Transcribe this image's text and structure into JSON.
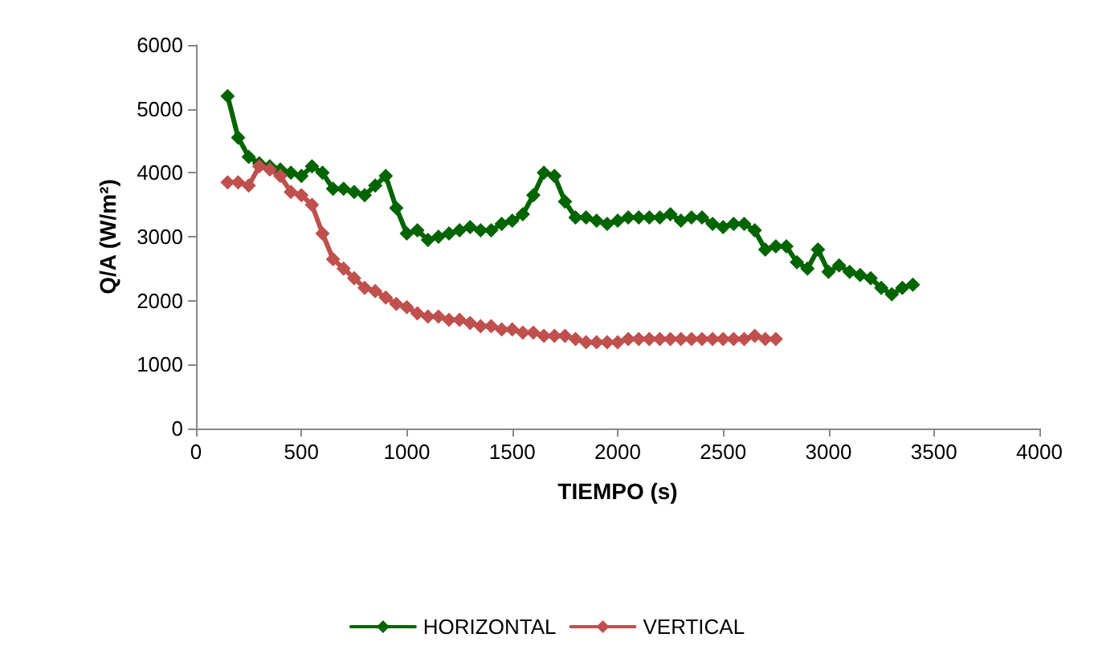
{
  "chart_data": {
    "type": "line",
    "xlabel": "TIEMPO (s)",
    "ylabel": "Q/A (W/m²)",
    "xlim": [
      0,
      4000
    ],
    "xticks": [
      0,
      500,
      1000,
      1500,
      2000,
      2500,
      3000,
      3500,
      4000
    ],
    "ylim": [
      0,
      6000
    ],
    "yticks": [
      0,
      1000,
      2000,
      3000,
      4000,
      5000,
      6000
    ],
    "grid": false,
    "legend": "bottom",
    "marker": "diamond",
    "line_style": "solid",
    "series": [
      {
        "name": "HORIZONTAL",
        "color": "#006400",
        "x": [
          150,
          200,
          250,
          300,
          350,
          400,
          450,
          500,
          550,
          600,
          650,
          700,
          750,
          800,
          850,
          900,
          950,
          1000,
          1050,
          1100,
          1150,
          1200,
          1250,
          1300,
          1350,
          1400,
          1450,
          1500,
          1550,
          1600,
          1650,
          1700,
          1750,
          1800,
          1850,
          1900,
          1950,
          2000,
          2050,
          2100,
          2150,
          2200,
          2250,
          2300,
          2350,
          2400,
          2450,
          2500,
          2550,
          2600,
          2650,
          2700,
          2750,
          2800,
          2850,
          2900,
          2950,
          3000,
          3050,
          3100,
          3150,
          3200,
          3250,
          3300,
          3350,
          3400
        ],
        "values": [
          5200,
          4550,
          4250,
          4150,
          4100,
          4050,
          4000,
          3950,
          4100,
          4000,
          3750,
          3750,
          3700,
          3650,
          3800,
          3950,
          3450,
          3050,
          3100,
          2950,
          3000,
          3050,
          3100,
          3150,
          3100,
          3100,
          3200,
          3250,
          3350,
          3650,
          4000,
          3950,
          3550,
          3300,
          3300,
          3250,
          3200,
          3250,
          3300,
          3300,
          3300,
          3300,
          3350,
          3250,
          3300,
          3300,
          3200,
          3150,
          3200,
          3200,
          3100,
          2800,
          2850,
          2850,
          2600,
          2500,
          2800,
          2450,
          2550,
          2450,
          2400,
          2350,
          2200,
          2100,
          2200,
          2250
        ]
      },
      {
        "name": "VERTICAL",
        "color": "#c0504d",
        "x": [
          150,
          200,
          250,
          300,
          350,
          400,
          450,
          500,
          550,
          600,
          650,
          700,
          750,
          800,
          850,
          900,
          950,
          1000,
          1050,
          1100,
          1150,
          1200,
          1250,
          1300,
          1350,
          1400,
          1450,
          1500,
          1550,
          1600,
          1650,
          1700,
          1750,
          1800,
          1850,
          1900,
          1950,
          2000,
          2050,
          2100,
          2150,
          2200,
          2250,
          2300,
          2350,
          2400,
          2450,
          2500,
          2550,
          2600,
          2650,
          2700,
          2750
        ],
        "values": [
          3850,
          3850,
          3800,
          4100,
          4050,
          3950,
          3700,
          3650,
          3500,
          3050,
          2650,
          2500,
          2350,
          2200,
          2150,
          2050,
          1950,
          1900,
          1800,
          1750,
          1750,
          1700,
          1700,
          1650,
          1600,
          1600,
          1550,
          1550,
          1500,
          1500,
          1450,
          1450,
          1450,
          1400,
          1350,
          1350,
          1350,
          1350,
          1400,
          1400,
          1400,
          1400,
          1400,
          1400,
          1400,
          1400,
          1400,
          1400,
          1400,
          1400,
          1450,
          1400,
          1400
        ]
      }
    ]
  }
}
